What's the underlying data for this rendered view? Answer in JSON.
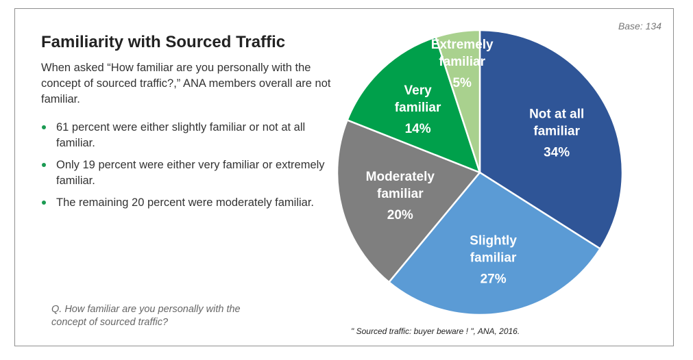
{
  "title": "Familiarity with Sourced Traffic",
  "intro": "When asked “How familiar are you personally with the concept of sourced traffic?,” ANA members overall are not familiar.",
  "bullets": [
    "61 percent were either slightly familiar or not at all familiar.",
    "Only 19 percent were either very familiar or extremely familiar.",
    "The remaining 20 percent were moderately familiar."
  ],
  "question": "Q. How familiar are you personally with the concept of sourced traffic?",
  "base": "Base: 134",
  "source": "\" Sourced traffic: buyer beware ! \", ANA, 2016.",
  "colors": {
    "not_at_all": "#2f5597",
    "slightly": "#5b9bd5",
    "moderately": "#7f7f7f",
    "very": "#00a04b",
    "extremely": "#a9d18e",
    "bullet": "#1a9a52"
  },
  "chart_data": {
    "type": "pie",
    "slices": [
      {
        "label": "Not at all familiar",
        "value": 34,
        "display": "34%",
        "lines": [
          "Not at all",
          "familiar"
        ],
        "color": "#2f5597"
      },
      {
        "label": "Slightly familiar",
        "value": 27,
        "display": "27%",
        "lines": [
          "Slightly",
          "familiar"
        ],
        "color": "#5b9bd5"
      },
      {
        "label": "Moderately familiar",
        "value": 20,
        "display": "20%",
        "lines": [
          "Moderately",
          "familiar"
        ],
        "color": "#7f7f7f"
      },
      {
        "label": "Very familiar",
        "value": 14,
        "display": "14%",
        "lines": [
          "Very",
          "familiar"
        ],
        "color": "#00a04b"
      },
      {
        "label": "Extremely familiar",
        "value": 5,
        "display": "5%",
        "lines": [
          "Extremely",
          "familiar"
        ],
        "color": "#a9d18e"
      }
    ],
    "start": "12 o'clock",
    "direction": "clockwise"
  }
}
